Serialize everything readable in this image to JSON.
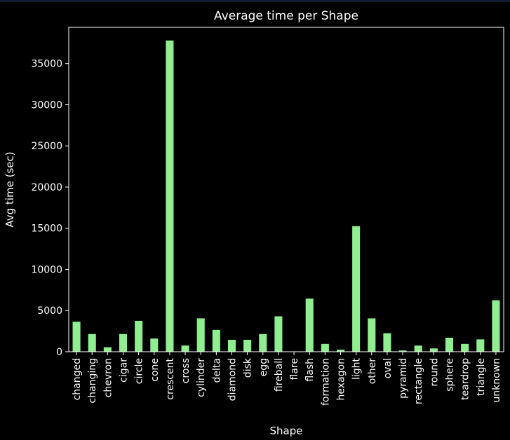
{
  "chart_data": {
    "type": "bar",
    "title": "Average time per Shape",
    "xlabel": "Shape",
    "ylabel": "Avg time (sec)",
    "ylim": [
      0,
      39400
    ],
    "yticks": [
      0,
      5000,
      10000,
      15000,
      20000,
      25000,
      30000,
      35000
    ],
    "grid": false,
    "bar_color": "#90ee90",
    "categories": [
      "changed",
      "changing",
      "chevron",
      "cigar",
      "circle",
      "cone",
      "crescent",
      "cross",
      "cylinder",
      "delta",
      "diamond",
      "disk",
      "egg",
      "fireball",
      "flare",
      "flash",
      "formation",
      "hexagon",
      "light",
      "other",
      "oval",
      "pyramid",
      "rectangle",
      "round",
      "sphere",
      "teardrop",
      "triangle",
      "unknown"
    ],
    "values": [
      3650,
      2150,
      550,
      2150,
      3750,
      1600,
      37800,
      750,
      4050,
      2650,
      1450,
      1450,
      2150,
      4300,
      10,
      6450,
      950,
      250,
      15250,
      4050,
      2250,
      150,
      750,
      400,
      1700,
      950,
      1500,
      6250
    ]
  },
  "colors": {
    "background": "#000000",
    "text": "#ffffff",
    "axes": "#ffffff",
    "bar": "#90ee90"
  }
}
